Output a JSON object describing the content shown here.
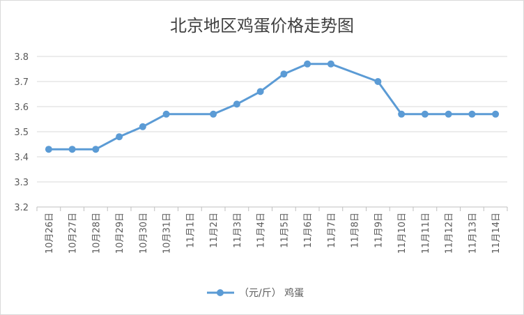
{
  "chart_data": {
    "type": "line",
    "title": "北京地区鸡蛋价格走势图",
    "xlabel": "",
    "ylabel": "",
    "categories": [
      "10月26日",
      "10月27日",
      "10月28日",
      "10月29日",
      "10月30日",
      "10月31日",
      "11月1日",
      "11月2日",
      "11月3日",
      "11月4日",
      "11月5日",
      "11月6日",
      "11月7日",
      "11月8日",
      "11月9日",
      "11月10日",
      "11月11日",
      "11月12日",
      "11月13日",
      "11月14日"
    ],
    "series": [
      {
        "name": "（元/斤） 鸡蛋",
        "values": [
          3.43,
          3.43,
          3.43,
          3.48,
          3.52,
          3.57,
          null,
          3.57,
          3.61,
          3.66,
          3.73,
          3.77,
          3.77,
          null,
          3.7,
          3.57,
          3.57,
          3.57,
          3.57,
          3.57
        ],
        "color": "#5b9bd5"
      }
    ],
    "ylim": [
      3.2,
      3.8
    ],
    "yticks": [
      3.2,
      3.3,
      3.4,
      3.5,
      3.6,
      3.7,
      3.8
    ],
    "grid": true,
    "legend": "bottom"
  },
  "colors": {
    "series": "#5b9bd5",
    "grid": "#d9d9d9",
    "axis": "#bfbfbf"
  }
}
